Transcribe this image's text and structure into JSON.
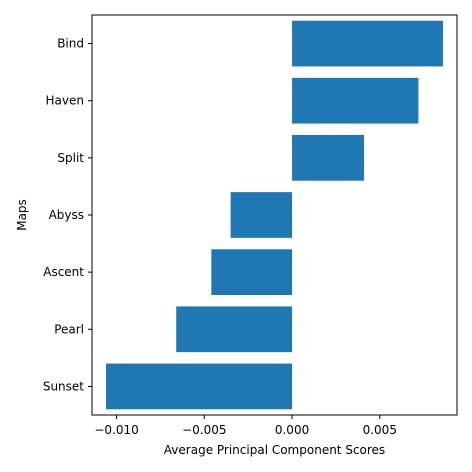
{
  "chart_data": {
    "type": "bar",
    "orientation": "horizontal",
    "title": "",
    "xlabel": "Average Principal Component Scores",
    "ylabel": "Maps",
    "categories": [
      "Sunset",
      "Pearl",
      "Ascent",
      "Abyss",
      "Split",
      "Haven",
      "Bind"
    ],
    "values": [
      -0.0106,
      -0.0066,
      -0.0046,
      -0.0035,
      0.0041,
      0.0072,
      0.0086
    ],
    "xlim": [
      -0.0114,
      0.0094
    ],
    "xticks": [
      -0.01,
      -0.005,
      0.0,
      0.005
    ],
    "xtick_labels": [
      "−0.010",
      "−0.005",
      "0.000",
      "0.005"
    ],
    "grid": false,
    "bar_color": "#1f77b4"
  }
}
